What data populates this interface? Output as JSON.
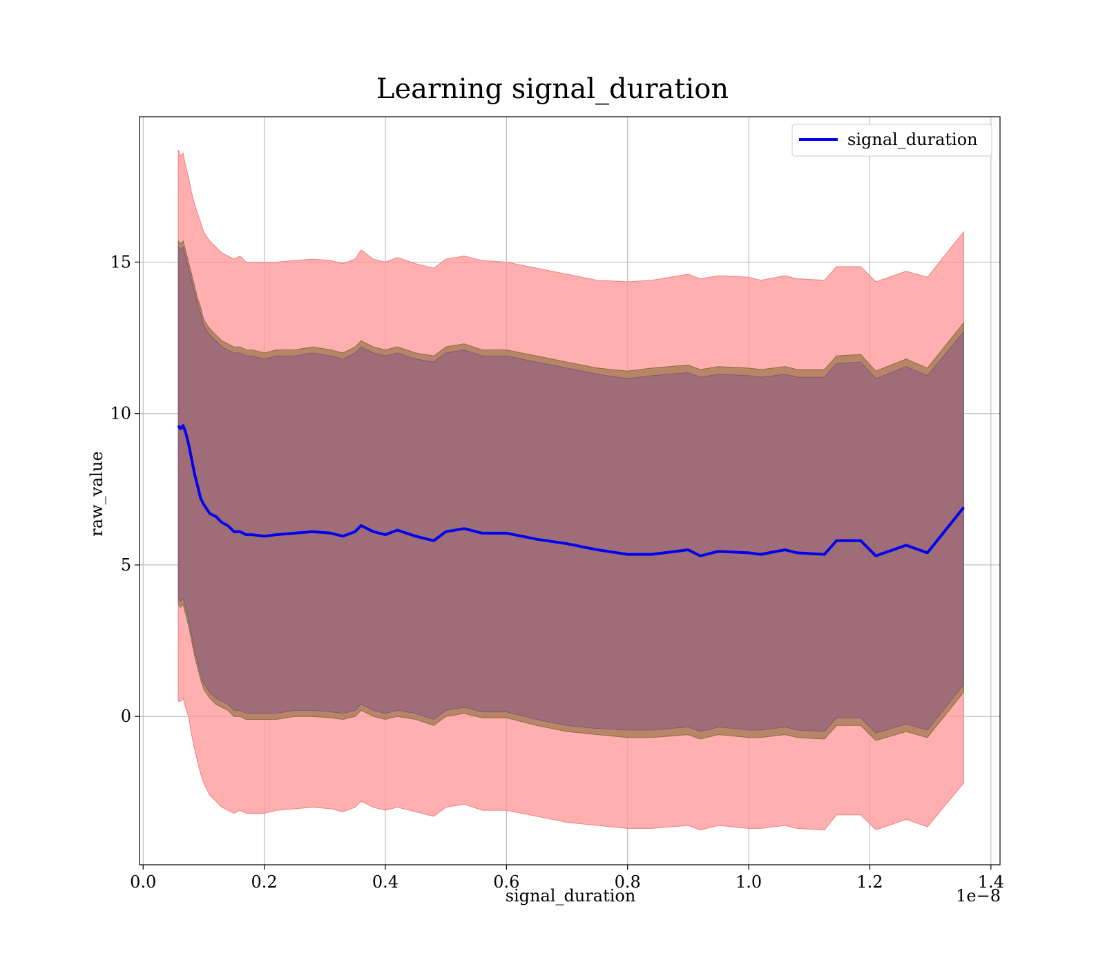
{
  "chart_data": {
    "type": "line",
    "title": "Learning signal_duration",
    "xlabel": "signal_duration",
    "ylabel": "raw_value",
    "x_offset_label": "1e−8",
    "xlim": [
      -0.006,
      1.415
    ],
    "ylim": [
      -4.9,
      19.8
    ],
    "grid": true,
    "legend_position": "upper right",
    "x_ticks": [
      0.0,
      0.2,
      0.4,
      0.6,
      0.8,
      1.0,
      1.2,
      1.4
    ],
    "x_tick_labels": [
      "0.0",
      "0.2",
      "0.4",
      "0.6",
      "0.8",
      "1.0",
      "1.2",
      "1.4"
    ],
    "y_ticks": [
      0,
      5,
      10,
      15
    ],
    "y_tick_labels": [
      "0",
      "5",
      "10",
      "15"
    ],
    "colors": {
      "line": "#0000ee",
      "outer_band": "#ff9999",
      "middle_band": "#a0784f",
      "inner_band": "#9c6b78",
      "grid": "#b0b0b0"
    },
    "series": [
      {
        "name": "signal_duration",
        "x": [
          0.058,
          0.062,
          0.066,
          0.07,
          0.075,
          0.08,
          0.085,
          0.09,
          0.095,
          0.1,
          0.11,
          0.12,
          0.13,
          0.14,
          0.15,
          0.16,
          0.17,
          0.18,
          0.2,
          0.22,
          0.25,
          0.28,
          0.31,
          0.33,
          0.35,
          0.36,
          0.38,
          0.4,
          0.42,
          0.45,
          0.48,
          0.5,
          0.53,
          0.56,
          0.6,
          0.65,
          0.7,
          0.75,
          0.8,
          0.84,
          0.9,
          0.92,
          0.95,
          1.0,
          1.02,
          1.06,
          1.08,
          1.125,
          1.145,
          1.185,
          1.21,
          1.26,
          1.295,
          1.355
        ],
        "values": [
          9.6,
          9.5,
          9.6,
          9.4,
          9.0,
          8.5,
          8.0,
          7.6,
          7.2,
          7.0,
          6.7,
          6.6,
          6.4,
          6.3,
          6.1,
          6.1,
          6.0,
          6.0,
          5.95,
          6.0,
          6.05,
          6.1,
          6.05,
          5.95,
          6.1,
          6.3,
          6.1,
          6.0,
          6.15,
          5.95,
          5.8,
          6.1,
          6.2,
          6.05,
          6.05,
          5.85,
          5.7,
          5.5,
          5.35,
          5.35,
          5.5,
          5.3,
          5.45,
          5.4,
          5.35,
          5.5,
          5.4,
          5.35,
          5.8,
          5.8,
          5.3,
          5.65,
          5.4,
          6.9
        ]
      }
    ],
    "bands": [
      {
        "label": "outer",
        "upper": [
          18.7,
          18.5,
          18.6,
          18.2,
          17.8,
          17.3,
          16.9,
          16.6,
          16.3,
          16.0,
          15.7,
          15.5,
          15.3,
          15.2,
          15.1,
          15.2,
          15.0,
          15.0,
          15.0,
          15.0,
          15.05,
          15.1,
          15.05,
          14.95,
          15.1,
          15.4,
          15.1,
          15.0,
          15.15,
          14.95,
          14.8,
          15.1,
          15.2,
          15.05,
          15.0,
          14.8,
          14.6,
          14.4,
          14.35,
          14.4,
          14.6,
          14.45,
          14.55,
          14.5,
          14.4,
          14.55,
          14.45,
          14.4,
          14.85,
          14.85,
          14.35,
          14.7,
          14.5,
          16.0
        ],
        "lower": [
          0.5,
          0.5,
          0.6,
          0.3,
          0.0,
          -0.6,
          -1.1,
          -1.5,
          -1.9,
          -2.2,
          -2.6,
          -2.8,
          -3.0,
          -3.1,
          -3.2,
          -3.1,
          -3.2,
          -3.2,
          -3.2,
          -3.1,
          -3.05,
          -3.0,
          -3.05,
          -3.15,
          -3.0,
          -2.8,
          -3.0,
          -3.1,
          -3.0,
          -3.15,
          -3.3,
          -3.0,
          -2.9,
          -3.1,
          -3.1,
          -3.3,
          -3.5,
          -3.6,
          -3.7,
          -3.7,
          -3.6,
          -3.75,
          -3.6,
          -3.7,
          -3.7,
          -3.6,
          -3.7,
          -3.75,
          -3.25,
          -3.25,
          -3.75,
          -3.4,
          -3.65,
          -2.2
        ]
      },
      {
        "label": "middle",
        "upper": [
          15.7,
          15.6,
          15.7,
          15.4,
          15.0,
          14.6,
          14.2,
          13.8,
          13.5,
          13.1,
          12.8,
          12.6,
          12.4,
          12.3,
          12.2,
          12.2,
          12.1,
          12.1,
          12.0,
          12.1,
          12.1,
          12.2,
          12.1,
          12.0,
          12.2,
          12.4,
          12.2,
          12.1,
          12.2,
          12.0,
          11.9,
          12.2,
          12.3,
          12.1,
          12.1,
          11.9,
          11.7,
          11.5,
          11.4,
          11.5,
          11.6,
          11.45,
          11.55,
          11.5,
          11.45,
          11.55,
          11.45,
          11.45,
          11.9,
          11.95,
          11.4,
          11.8,
          11.5,
          13.0
        ],
        "lower": [
          3.7,
          3.6,
          3.7,
          3.4,
          3.0,
          2.5,
          2.0,
          1.6,
          1.2,
          0.9,
          0.6,
          0.4,
          0.3,
          0.2,
          0.0,
          0.0,
          -0.1,
          -0.1,
          -0.1,
          -0.1,
          0.0,
          0.0,
          -0.05,
          -0.1,
          0.0,
          0.2,
          0.0,
          -0.1,
          0.0,
          -0.1,
          -0.3,
          0.0,
          0.1,
          -0.05,
          -0.05,
          -0.3,
          -0.5,
          -0.6,
          -0.7,
          -0.7,
          -0.6,
          -0.75,
          -0.6,
          -0.7,
          -0.7,
          -0.6,
          -0.7,
          -0.75,
          -0.3,
          -0.3,
          -0.8,
          -0.5,
          -0.7,
          0.8
        ]
      },
      {
        "label": "inner",
        "upper": [
          15.5,
          15.4,
          15.5,
          15.2,
          14.8,
          14.4,
          14.0,
          13.6,
          13.3,
          12.9,
          12.6,
          12.4,
          12.2,
          12.1,
          12.0,
          12.0,
          11.9,
          11.9,
          11.8,
          11.9,
          11.9,
          12.0,
          11.9,
          11.8,
          12.0,
          12.2,
          12.0,
          11.9,
          12.0,
          11.8,
          11.7,
          12.0,
          12.1,
          11.9,
          11.9,
          11.7,
          11.5,
          11.3,
          11.15,
          11.25,
          11.35,
          11.2,
          11.3,
          11.25,
          11.2,
          11.3,
          11.2,
          11.2,
          11.65,
          11.7,
          11.15,
          11.55,
          11.25,
          12.7
        ],
        "lower": [
          3.9,
          3.8,
          3.9,
          3.6,
          3.2,
          2.7,
          2.2,
          1.8,
          1.4,
          1.1,
          0.8,
          0.6,
          0.5,
          0.4,
          0.2,
          0.2,
          0.1,
          0.1,
          0.1,
          0.1,
          0.2,
          0.2,
          0.15,
          0.1,
          0.2,
          0.4,
          0.2,
          0.1,
          0.2,
          0.1,
          -0.1,
          0.2,
          0.3,
          0.15,
          0.15,
          -0.1,
          -0.3,
          -0.4,
          -0.45,
          -0.45,
          -0.35,
          -0.5,
          -0.35,
          -0.45,
          -0.45,
          -0.35,
          -0.45,
          -0.5,
          -0.05,
          -0.05,
          -0.55,
          -0.25,
          -0.45,
          1.05
        ]
      }
    ]
  }
}
